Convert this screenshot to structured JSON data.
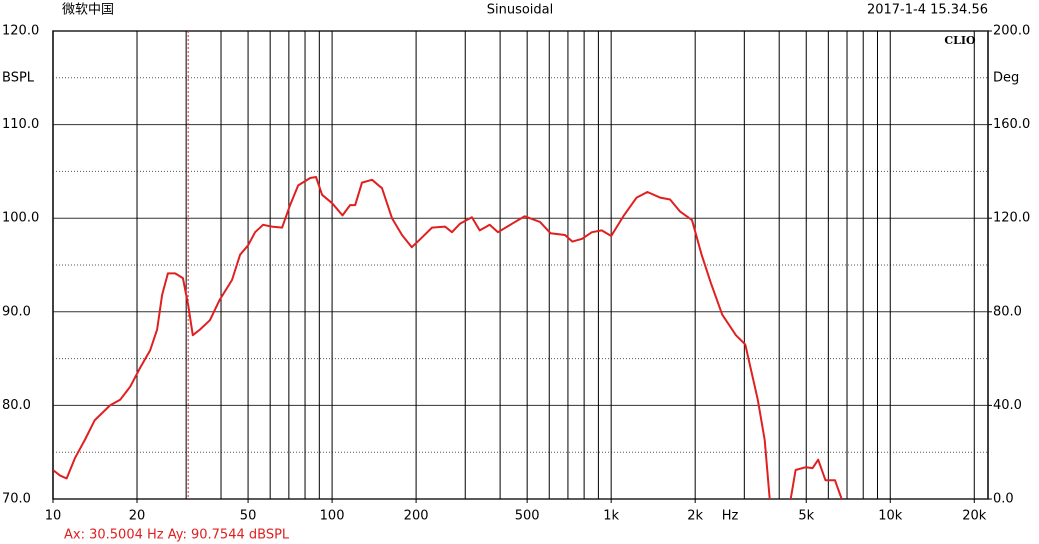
{
  "chart_data": {
    "type": "line",
    "header_left": "微软中国",
    "title": "Sinusoidal",
    "header_right": "2017-1-4 15.34.56",
    "logo": "CLIO",
    "ylabel": "BSPL",
    "y2label": "Deg",
    "xunit": "Hz",
    "xscale": "log",
    "xlim": [
      10,
      22400
    ],
    "ylim": [
      70,
      120
    ],
    "y2lim": [
      0,
      200
    ],
    "xticks": [
      {
        "value": 10,
        "label": "10"
      },
      {
        "value": 20,
        "label": "20"
      },
      {
        "value": 50,
        "label": "50"
      },
      {
        "value": 100,
        "label": "100"
      },
      {
        "value": 200,
        "label": "200"
      },
      {
        "value": 500,
        "label": "500"
      },
      {
        "value": 1000,
        "label": "1k"
      },
      {
        "value": 2000,
        "label": "2k"
      },
      {
        "value": 5000,
        "label": "5k"
      },
      {
        "value": 10000,
        "label": "10k"
      },
      {
        "value": 20000,
        "label": "20k"
      }
    ],
    "xgrid": [
      10,
      20,
      30,
      40,
      50,
      60,
      70,
      80,
      90,
      100,
      200,
      300,
      400,
      500,
      600,
      700,
      800,
      900,
      1000,
      2000,
      3000,
      4000,
      5000,
      6000,
      7000,
      8000,
      9000,
      10000,
      20000
    ],
    "yticks": [
      {
        "value": 70,
        "label": "70.0"
      },
      {
        "value": 80,
        "label": "80.0"
      },
      {
        "value": 90,
        "label": "90.0"
      },
      {
        "value": 100,
        "label": "100.0"
      },
      {
        "value": 110,
        "label": "110.0"
      },
      {
        "value": 120,
        "label": "120.0"
      }
    ],
    "yminor": [
      75,
      85,
      95,
      105,
      115
    ],
    "y2ticks": [
      {
        "value": 0,
        "label": "0.0"
      },
      {
        "value": 40,
        "label": "40.0"
      },
      {
        "value": 80,
        "label": "80.0"
      },
      {
        "value": 120,
        "label": "120.0"
      },
      {
        "value": 160,
        "label": "160.0"
      },
      {
        "value": 200,
        "label": "200.0"
      }
    ],
    "cursor": {
      "x": 30.5004,
      "label": "Ax: 30.5004 Hz  Ay: 90.7544 dBSPL"
    },
    "x": [
      10,
      10.6,
      11.2,
      12.0,
      13.0,
      14.1,
      16.0,
      17.4,
      18.9,
      20.5,
      22.3,
      23.6,
      24.6,
      25.8,
      27.4,
      29.2,
      30.5,
      31.7,
      33.6,
      36.5,
      39.6,
      43.8,
      46.8,
      50,
      53,
      56.6,
      60.9,
      66.2,
      70.7,
      75.6,
      83.5,
      87.6,
      92.1,
      100,
      109,
      116,
      121,
      128,
      139,
      151,
      164,
      178,
      193,
      206,
      228,
      254,
      269,
      287,
      317,
      338,
      367,
      393,
      441,
      490,
      556,
      606,
      683,
      726,
      787,
      853,
      926,
      1000,
      1111,
      1233,
      1348,
      1497,
      1626,
      1766,
      1948,
      2108,
      2275,
      2500,
      2798,
      3023,
      3352,
      3550,
      3700,
      4000,
      4400,
      4580,
      4980,
      5270,
      5520,
      5860,
      6340,
      6700
    ],
    "series": [
      {
        "name": "SPL",
        "color": "#e02020",
        "values": [
          73.1,
          72.5,
          72.2,
          74.4,
          76.3,
          78.4,
          80.0,
          80.6,
          82.0,
          84.0,
          85.9,
          88.1,
          91.8,
          94.1,
          94.1,
          93.6,
          90.7,
          87.5,
          88.1,
          89.1,
          91.3,
          93.4,
          96.1,
          97.1,
          98.5,
          99.3,
          99.1,
          99.0,
          101.4,
          103.5,
          104.3,
          104.4,
          102.5,
          101.6,
          100.3,
          101.4,
          101.4,
          103.8,
          104.1,
          103.2,
          100.0,
          98.2,
          96.9,
          97.7,
          99.0,
          99.1,
          98.5,
          99.4,
          100.1,
          98.7,
          99.3,
          98.5,
          99.4,
          100.2,
          99.6,
          98.4,
          98.2,
          97.5,
          97.8,
          98.5,
          98.7,
          98.1,
          100.3,
          102.2,
          102.8,
          102.2,
          102.0,
          100.7,
          99.8,
          96.1,
          93.1,
          89.7,
          87.5,
          86.5,
          80.6,
          76.3,
          70.0,
          null,
          70.0,
          73.1,
          73.4,
          73.3,
          74.2,
          72.0,
          72.0,
          70.0
        ]
      }
    ]
  }
}
